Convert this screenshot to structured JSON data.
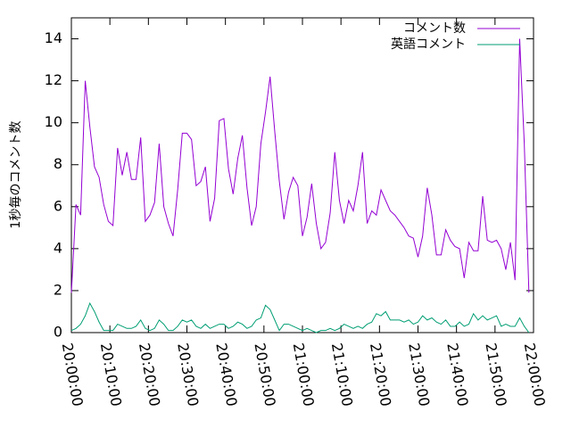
{
  "chart_data": {
    "type": "line",
    "ylabel": "1秒毎のコメント数",
    "x": [
      "20:00:00",
      "20:01:12",
      "20:02:24",
      "20:03:36",
      "20:04:48",
      "20:06:00",
      "20:07:12",
      "20:08:24",
      "20:09:36",
      "20:10:48",
      "20:12:00",
      "20:13:12",
      "20:14:24",
      "20:15:36",
      "20:16:48",
      "20:18:00",
      "20:19:12",
      "20:20:24",
      "20:21:36",
      "20:22:48",
      "20:24:00",
      "20:25:12",
      "20:26:24",
      "20:27:36",
      "20:28:48",
      "20:30:00",
      "20:31:12",
      "20:32:24",
      "20:33:36",
      "20:34:48",
      "20:36:00",
      "20:37:12",
      "20:38:24",
      "20:39:36",
      "20:40:48",
      "20:42:00",
      "20:43:12",
      "20:44:24",
      "20:45:36",
      "20:46:48",
      "20:48:00",
      "20:49:12",
      "20:50:24",
      "20:51:36",
      "20:52:48",
      "20:54:00",
      "20:55:12",
      "20:56:24",
      "20:57:36",
      "20:58:48",
      "21:00:00",
      "21:01:12",
      "21:02:24",
      "21:03:36",
      "21:04:48",
      "21:06:00",
      "21:07:12",
      "21:08:24",
      "21:09:36",
      "21:10:48",
      "21:12:00",
      "21:13:12",
      "21:14:24",
      "21:15:36",
      "21:16:48",
      "21:18:00",
      "21:19:12",
      "21:20:24",
      "21:21:36",
      "21:22:48",
      "21:24:00",
      "21:25:12",
      "21:26:24",
      "21:27:36",
      "21:28:48",
      "21:30:00",
      "21:31:12",
      "21:32:24",
      "21:33:36",
      "21:34:48",
      "21:36:00",
      "21:37:12",
      "21:38:24",
      "21:39:36",
      "21:40:48",
      "21:42:00",
      "21:43:12",
      "21:44:24",
      "21:45:36",
      "21:46:48",
      "21:48:00",
      "21:49:12",
      "21:50:24",
      "21:51:36",
      "21:52:48",
      "21:54:00",
      "21:55:12",
      "21:56:24",
      "21:57:36",
      "21:58:48"
    ],
    "series": [
      {
        "name": "コメント数",
        "color": "#9400d3",
        "values": [
          1.9,
          6.1,
          5.6,
          12,
          9.8,
          7.9,
          7.4,
          6.1,
          5.3,
          5.1,
          8.8,
          7.5,
          8.6,
          7.3,
          7.3,
          9.3,
          5.3,
          5.6,
          6.2,
          9.0,
          6.0,
          5.2,
          4.6,
          6.8,
          9.5,
          9.5,
          9.2,
          7.0,
          7.2,
          7.9,
          5.3,
          6.4,
          10.1,
          10.2,
          7.8,
          6.6,
          8.3,
          9.4,
          6.9,
          5.1,
          6.0,
          9.0,
          10.5,
          12.2,
          9.6,
          7.2,
          5.4,
          6.7,
          7.4,
          7.0,
          4.6,
          5.5,
          7.1,
          5.2,
          4.0,
          4.3,
          5.7,
          8.6,
          6.3,
          5.2,
          6.3,
          5.8,
          7.0,
          8.6,
          5.2,
          5.8,
          5.6,
          6.8,
          6.3,
          5.8,
          5.6,
          5.3,
          5.0,
          4.6,
          4.5,
          3.6,
          4.6,
          6.9,
          5.6,
          3.7,
          3.7,
          4.9,
          4.4,
          4.1,
          4.0,
          2.6,
          4.3,
          3.9,
          3.9,
          6.5,
          4.4,
          4.3,
          4.4,
          4.0,
          3.0,
          4.3,
          2.5,
          14.0,
          9.0,
          1.9
        ]
      },
      {
        "name": "英語コメント",
        "color": "#009e73",
        "values": [
          0.1,
          0.2,
          0.4,
          0.8,
          1.4,
          1.0,
          0.5,
          0.1,
          0.1,
          0.1,
          0.4,
          0.3,
          0.2,
          0.2,
          0.3,
          0.6,
          0.2,
          0.1,
          0.2,
          0.6,
          0.4,
          0.1,
          0.1,
          0.3,
          0.6,
          0.5,
          0.6,
          0.3,
          0.2,
          0.4,
          0.2,
          0.3,
          0.4,
          0.4,
          0.2,
          0.3,
          0.5,
          0.4,
          0.2,
          0.3,
          0.6,
          0.7,
          1.3,
          1.1,
          0.6,
          0.1,
          0.4,
          0.4,
          0.3,
          0.2,
          0.1,
          0.2,
          0.1,
          0.0,
          0.1,
          0.1,
          0.2,
          0.1,
          0.2,
          0.4,
          0.3,
          0.2,
          0.3,
          0.2,
          0.4,
          0.5,
          0.9,
          0.8,
          1.0,
          0.6,
          0.6,
          0.6,
          0.5,
          0.6,
          0.4,
          0.5,
          0.8,
          0.6,
          0.7,
          0.5,
          0.4,
          0.6,
          0.3,
          0.3,
          0.5,
          0.3,
          0.4,
          0.9,
          0.6,
          0.8,
          0.6,
          0.7,
          0.8,
          0.3,
          0.4,
          0.3,
          0.3,
          0.7,
          0.3,
          0.0
        ]
      }
    ],
    "xlim": [
      "20:00:00",
      "22:00:00"
    ],
    "xticks": [
      "20:00:00",
      "20:10:00",
      "20:20:00",
      "20:30:00",
      "20:40:00",
      "20:50:00",
      "21:00:00",
      "21:10:00",
      "21:20:00",
      "21:30:00",
      "21:40:00",
      "21:50:00",
      "22:00:00"
    ],
    "ylim": [
      0,
      15
    ],
    "yticks": [
      0,
      2,
      4,
      6,
      8,
      10,
      12,
      14
    ],
    "legend": "upper right"
  }
}
